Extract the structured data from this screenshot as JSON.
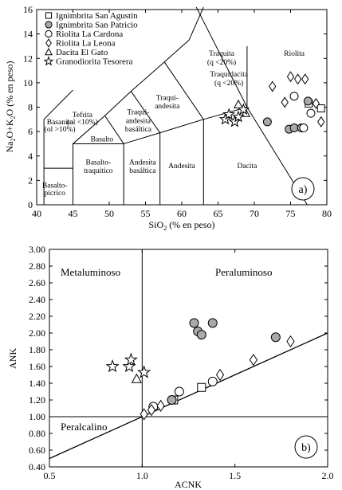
{
  "chart_data": [
    {
      "type": "scatter",
      "panel_label": "a)",
      "xlabel_base": "SiO",
      "xlabel_sub": "2",
      "xlabel_rest": " (% en peso)",
      "ylabel_parts": [
        "Na",
        "2",
        "O+K",
        "2",
        "O (% en peso)"
      ],
      "xlim": [
        40,
        80
      ],
      "ylim": [
        0,
        16
      ],
      "xticks": [
        40,
        45,
        50,
        55,
        60,
        65,
        70,
        75,
        80
      ],
      "yticks": [
        0,
        2,
        4,
        6,
        8,
        10,
        12,
        14,
        16
      ],
      "legend": [
        {
          "symbol": "square",
          "label": "Ignimbrita San Agustín"
        },
        {
          "symbol": "circle-filled",
          "label": "Ignimbrita San Patricio"
        },
        {
          "symbol": "circle",
          "label": "Riolita La Cardona"
        },
        {
          "symbol": "diamond",
          "label": "Riolita La Leona"
        },
        {
          "symbol": "triangle",
          "label": "Dacita El Gato"
        },
        {
          "symbol": "star",
          "label": "Granodiorita Tesorera"
        }
      ],
      "field_labels": [
        {
          "text": "Riolita",
          "x": 75.5,
          "y": 12.2
        },
        {
          "text": "Traquita",
          "x": 65.5,
          "y": 12.2
        },
        {
          "text": "(q <20%)",
          "x": 65.5,
          "y": 11.5
        },
        {
          "text": "Traquidacita",
          "x": 66.5,
          "y": 10.5
        },
        {
          "text": "(q <20%)",
          "x": 66.5,
          "y": 9.8
        },
        {
          "text": "Traqui-",
          "x": 58,
          "y": 8.6
        },
        {
          "text": "andesita",
          "x": 58,
          "y": 7.9
        },
        {
          "text": "Traqui-",
          "x": 54,
          "y": 7.4
        },
        {
          "text": "andesita",
          "x": 54,
          "y": 6.7
        },
        {
          "text": "basáltica",
          "x": 54,
          "y": 6.0
        },
        {
          "text": "Tefrita",
          "x": 46.3,
          "y": 7.2
        },
        {
          "text": "(ol <10%)",
          "x": 46.3,
          "y": 6.6
        },
        {
          "text": "Basanita",
          "x": 43.2,
          "y": 6.6
        },
        {
          "text": "(ol >10%)",
          "x": 43.2,
          "y": 6.0
        },
        {
          "text": "Basalto",
          "x": 49,
          "y": 5.2
        },
        {
          "text": "Basalto-",
          "x": 48.5,
          "y": 3.3
        },
        {
          "text": "traquítico",
          "x": 48.5,
          "y": 2.6
        },
        {
          "text": "Andesita",
          "x": 54.6,
          "y": 3.3
        },
        {
          "text": "basáltica",
          "x": 54.6,
          "y": 2.6
        },
        {
          "text": "Andesita",
          "x": 60,
          "y": 3.0
        },
        {
          "text": "Dacita",
          "x": 69,
          "y": 3.0
        },
        {
          "text": "Basalto-",
          "x": 42.5,
          "y": 1.4
        },
        {
          "text": "pícrico",
          "x": 42.5,
          "y": 0.8
        }
      ],
      "series": [
        {
          "name": "Ignimbrita San Agustín",
          "symbol": "square",
          "x": [
            77.5,
            79.2
          ],
          "y": [
            8.3,
            7.9
          ]
        },
        {
          "name": "Ignimbrita San Patricio",
          "symbol": "circle-filled",
          "x": [
            71.8,
            74.8,
            75.5,
            76.5,
            77.4
          ],
          "y": [
            6.8,
            6.2,
            6.3,
            6.3,
            8.5
          ]
        },
        {
          "name": "Riolita La Cardona",
          "symbol": "circle",
          "x": [
            75.5,
            76.8,
            77.8
          ],
          "y": [
            8.9,
            6.3,
            7.5
          ]
        },
        {
          "name": "Riolita La Leona",
          "symbol": "diamond",
          "x": [
            72.5,
            75.0,
            76.0,
            77.0,
            78.5,
            79.2,
            74.2
          ],
          "y": [
            9.7,
            10.5,
            10.3,
            10.3,
            8.3,
            6.8,
            8.4
          ]
        },
        {
          "name": "Dacita El Gato",
          "symbol": "triangle",
          "x": [
            67.8,
            68.8
          ],
          "y": [
            8.2,
            7.5
          ]
        },
        {
          "name": "Granodiorita Tesorera",
          "symbol": "star",
          "x": [
            66.0,
            67.3,
            68.5,
            66.5,
            67.8
          ],
          "y": [
            7.0,
            6.8,
            7.8,
            7.4,
            7.2
          ]
        }
      ]
    },
    {
      "type": "scatter",
      "panel_label": "b)",
      "xlabel": "ACNK",
      "ylabel": "ANK",
      "xlim": [
        0.5,
        2.0
      ],
      "ylim": [
        0.4,
        3.0
      ],
      "xticks": [
        "0.5",
        "1.0",
        "1.5",
        "2.0"
      ],
      "yticks": [
        "0.40",
        "0.60",
        "0.80",
        "1.00",
        "1.20",
        "1.40",
        "1.60",
        "1.80",
        "2.00",
        "2.20",
        "2.40",
        "2.60",
        "2.80",
        "3.00"
      ],
      "region_labels": [
        "Metaluminoso",
        "Peraluminoso",
        "Peralcalino"
      ],
      "series": [
        {
          "name": "Ignimbrita San Agustín",
          "symbol": "square",
          "x": [
            1.17,
            1.32
          ],
          "y": [
            1.2,
            1.35
          ]
        },
        {
          "name": "Ignimbrita San Patricio",
          "symbol": "circle-filled",
          "x": [
            1.28,
            1.3,
            1.32,
            1.38,
            1.72,
            1.16
          ],
          "y": [
            2.12,
            2.02,
            1.98,
            2.12,
            1.95,
            1.2
          ]
        },
        {
          "name": "Riolita La Cardona",
          "symbol": "circle",
          "x": [
            1.06,
            1.2,
            1.38
          ],
          "y": [
            1.12,
            1.3,
            1.42
          ]
        },
        {
          "name": "Riolita La Leona",
          "symbol": "diamond",
          "x": [
            1.01,
            1.05,
            1.1,
            1.42,
            1.6,
            1.8
          ],
          "y": [
            1.03,
            1.08,
            1.13,
            1.5,
            1.68,
            1.9
          ]
        },
        {
          "name": "Dacita El Gato",
          "symbol": "triangle",
          "x": [
            0.97
          ],
          "y": [
            1.45
          ]
        },
        {
          "name": "Granodiorita Tesorera",
          "symbol": "star",
          "x": [
            0.84,
            0.93,
            0.94,
            1.01
          ],
          "y": [
            1.6,
            1.6,
            1.68,
            1.53
          ]
        }
      ]
    }
  ]
}
